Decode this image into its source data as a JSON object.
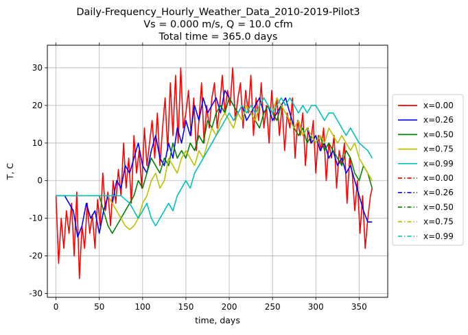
{
  "chart_data": {
    "type": "line",
    "title": "Daily-Frequency_Hourly_Weather_Data_2010-2019-Pilot3",
    "subtitle_lines": [
      "Vs = 0.000 m/s, Q = 10.0 cfm",
      "Total time = 365.0 days"
    ],
    "xlabel": "time, days",
    "ylabel": "T, C",
    "xlim": [
      -10,
      383
    ],
    "ylim": [
      -31,
      36
    ],
    "xticks": [
      0,
      50,
      100,
      150,
      200,
      250,
      300,
      350
    ],
    "yticks": [
      -30,
      -20,
      -10,
      0,
      10,
      20,
      30
    ],
    "grid": true,
    "legend_position": "outside-right",
    "legend": [
      {
        "label": "x=0.00",
        "color": "#ff0000",
        "style": "solid"
      },
      {
        "label": "x=0.26",
        "color": "#0000ff",
        "style": "solid"
      },
      {
        "label": "x=0.50",
        "color": "#008000",
        "style": "solid"
      },
      {
        "label": "x=0.75",
        "color": "#bfbf00",
        "style": "solid"
      },
      {
        "label": "x=0.99",
        "color": "#00bfbf",
        "style": "solid"
      },
      {
        "label": "x=0.00",
        "color": "#ff0000",
        "style": "dashdot"
      },
      {
        "label": "x=0.26",
        "color": "#0000ff",
        "style": "dashdot"
      },
      {
        "label": "x=0.50",
        "color": "#008000",
        "style": "dashdot"
      },
      {
        "label": "x=0.75",
        "color": "#bfbf00",
        "style": "dashdot"
      },
      {
        "label": "x=0.99",
        "color": "#00bfbf",
        "style": "dashdot"
      }
    ],
    "series": [
      {
        "color": "#ff0000",
        "x": [
          0,
          3,
          6,
          9,
          12,
          15,
          18,
          21,
          24,
          27,
          30,
          33,
          36,
          39,
          42,
          45,
          48,
          51,
          54,
          57,
          60,
          63,
          66,
          69,
          72,
          75,
          78,
          81,
          84,
          87,
          90,
          93,
          96,
          99,
          102,
          105,
          108,
          111,
          114,
          117,
          120,
          123,
          126,
          129,
          132,
          135,
          138,
          141,
          144,
          147,
          150,
          153,
          156,
          159,
          162,
          165,
          168,
          171,
          174,
          177,
          180,
          183,
          186,
          189,
          192,
          195,
          198,
          201,
          204,
          207,
          210,
          213,
          216,
          219,
          222,
          225,
          228,
          231,
          234,
          237,
          240,
          243,
          246,
          249,
          252,
          255,
          258,
          261,
          264,
          267,
          270,
          273,
          276,
          279,
          282,
          285,
          288,
          291,
          294,
          297,
          300,
          303,
          306,
          309,
          312,
          315,
          318,
          321,
          324,
          327,
          330,
          333,
          336,
          339,
          342,
          345,
          348,
          351,
          354,
          357,
          360,
          363,
          365
        ],
        "y": [
          -4,
          -22,
          -10,
          -18,
          -8,
          -14,
          -6,
          -20,
          -3,
          -26,
          -12,
          -18,
          -6,
          -14,
          -9,
          -18,
          -5,
          -12,
          2,
          -8,
          -3,
          -12,
          0,
          -6,
          3,
          -4,
          10,
          -2,
          6,
          -6,
          12,
          2,
          8,
          -2,
          14,
          4,
          10,
          16,
          6,
          18,
          4,
          14,
          22,
          8,
          26,
          12,
          28,
          10,
          30,
          14,
          18,
          24,
          12,
          22,
          8,
          16,
          26,
          10,
          20,
          14,
          22,
          26,
          14,
          20,
          28,
          18,
          24,
          20,
          30,
          16,
          22,
          26,
          14,
          24,
          18,
          28,
          12,
          22,
          16,
          26,
          14,
          20,
          10,
          24,
          16,
          22,
          12,
          20,
          8,
          18,
          14,
          22,
          6,
          16,
          12,
          18,
          4,
          14,
          10,
          16,
          2,
          12,
          8,
          14,
          0,
          10,
          6,
          12,
          -2,
          8,
          4,
          10,
          -6,
          6,
          2,
          -8,
          0,
          -14,
          -4,
          -18,
          -10,
          -4,
          -2
        ]
      },
      {
        "color": "#0000ff",
        "x": [
          0,
          10,
          20,
          25,
          30,
          35,
          40,
          45,
          50,
          55,
          60,
          65,
          70,
          75,
          80,
          85,
          90,
          95,
          100,
          105,
          110,
          115,
          120,
          125,
          130,
          135,
          140,
          145,
          150,
          155,
          160,
          165,
          170,
          175,
          180,
          185,
          190,
          195,
          200,
          205,
          210,
          215,
          220,
          225,
          230,
          235,
          240,
          245,
          250,
          255,
          260,
          265,
          270,
          275,
          280,
          285,
          290,
          295,
          300,
          305,
          310,
          315,
          320,
          325,
          330,
          335,
          340,
          345,
          350,
          355,
          360,
          365
        ],
        "y": [
          -4,
          -4,
          -8,
          -15,
          -12,
          -6,
          -10,
          -8,
          -14,
          -8,
          -4,
          -6,
          0,
          -2,
          4,
          2,
          6,
          10,
          4,
          2,
          8,
          12,
          6,
          4,
          10,
          6,
          14,
          10,
          16,
          12,
          20,
          16,
          22,
          18,
          20,
          22,
          18,
          24,
          22,
          20,
          18,
          20,
          16,
          18,
          20,
          22,
          18,
          20,
          16,
          18,
          20,
          22,
          18,
          14,
          16,
          12,
          14,
          10,
          12,
          8,
          10,
          6,
          8,
          4,
          6,
          2,
          4,
          0,
          -4,
          -8,
          -11,
          -11
        ]
      },
      {
        "color": "#008000",
        "x": [
          0,
          10,
          20,
          30,
          40,
          50,
          55,
          60,
          65,
          70,
          75,
          80,
          85,
          90,
          95,
          100,
          105,
          110,
          115,
          120,
          125,
          130,
          135,
          140,
          145,
          150,
          155,
          160,
          165,
          170,
          175,
          180,
          185,
          190,
          195,
          200,
          205,
          210,
          215,
          220,
          225,
          230,
          235,
          240,
          245,
          250,
          255,
          260,
          265,
          270,
          275,
          280,
          285,
          290,
          295,
          300,
          305,
          310,
          315,
          320,
          325,
          330,
          335,
          340,
          345,
          350,
          355,
          360,
          365
        ],
        "y": [
          -4,
          -4,
          -4,
          -4,
          -4,
          -4,
          -8,
          -12,
          -14,
          -12,
          -10,
          -8,
          -6,
          -4,
          0,
          -2,
          2,
          6,
          4,
          2,
          6,
          4,
          10,
          6,
          8,
          6,
          10,
          8,
          12,
          10,
          16,
          14,
          18,
          20,
          18,
          22,
          20,
          18,
          16,
          20,
          18,
          16,
          14,
          18,
          20,
          18,
          16,
          20,
          18,
          16,
          14,
          12,
          14,
          10,
          12,
          10,
          12,
          8,
          10,
          8,
          6,
          4,
          8,
          6,
          2,
          0,
          4,
          2,
          -2
        ]
      },
      {
        "color": "#bfbf00",
        "x": [
          0,
          10,
          20,
          30,
          40,
          50,
          60,
          65,
          70,
          75,
          80,
          85,
          90,
          95,
          100,
          105,
          110,
          115,
          120,
          125,
          130,
          135,
          140,
          145,
          150,
          155,
          160,
          165,
          170,
          175,
          180,
          185,
          190,
          195,
          200,
          205,
          210,
          215,
          220,
          225,
          230,
          235,
          240,
          245,
          250,
          255,
          260,
          265,
          270,
          275,
          280,
          285,
          290,
          295,
          300,
          305,
          310,
          315,
          320,
          325,
          330,
          335,
          340,
          345,
          350,
          355,
          360,
          365
        ],
        "y": [
          -4,
          -4,
          -4,
          -4,
          -4,
          -4,
          -4,
          -6,
          -8,
          -10,
          -12,
          -13,
          -12,
          -10,
          -6,
          -4,
          0,
          2,
          -2,
          0,
          6,
          4,
          2,
          6,
          8,
          6,
          4,
          8,
          6,
          10,
          14,
          12,
          16,
          18,
          16,
          14,
          18,
          16,
          20,
          18,
          16,
          20,
          22,
          20,
          18,
          22,
          20,
          18,
          16,
          14,
          16,
          12,
          14,
          12,
          10,
          12,
          10,
          14,
          12,
          10,
          12,
          10,
          8,
          10,
          6,
          4,
          2,
          0
        ]
      },
      {
        "color": "#00bfbf",
        "x": [
          0,
          10,
          20,
          30,
          40,
          50,
          60,
          70,
          75,
          80,
          85,
          90,
          95,
          100,
          105,
          110,
          115,
          120,
          125,
          130,
          135,
          140,
          145,
          150,
          155,
          160,
          165,
          170,
          175,
          180,
          185,
          190,
          195,
          200,
          205,
          210,
          215,
          220,
          225,
          230,
          235,
          240,
          245,
          250,
          255,
          260,
          265,
          270,
          275,
          280,
          285,
          290,
          295,
          300,
          305,
          310,
          315,
          320,
          325,
          330,
          335,
          340,
          345,
          350,
          355,
          360,
          365
        ],
        "y": [
          -4,
          -4,
          -4,
          -4,
          -4,
          -4,
          -4,
          -4,
          -4,
          -5,
          -6,
          -8,
          -10,
          -8,
          -6,
          -10,
          -12,
          -10,
          -8,
          -6,
          -8,
          -4,
          -2,
          0,
          -2,
          2,
          4,
          6,
          8,
          10,
          12,
          14,
          16,
          18,
          16,
          18,
          20,
          18,
          20,
          18,
          20,
          22,
          20,
          18,
          20,
          22,
          20,
          22,
          20,
          18,
          20,
          18,
          20,
          20,
          18,
          16,
          18,
          18,
          16,
          14,
          12,
          14,
          12,
          10,
          9,
          8,
          6
        ]
      }
    ]
  }
}
